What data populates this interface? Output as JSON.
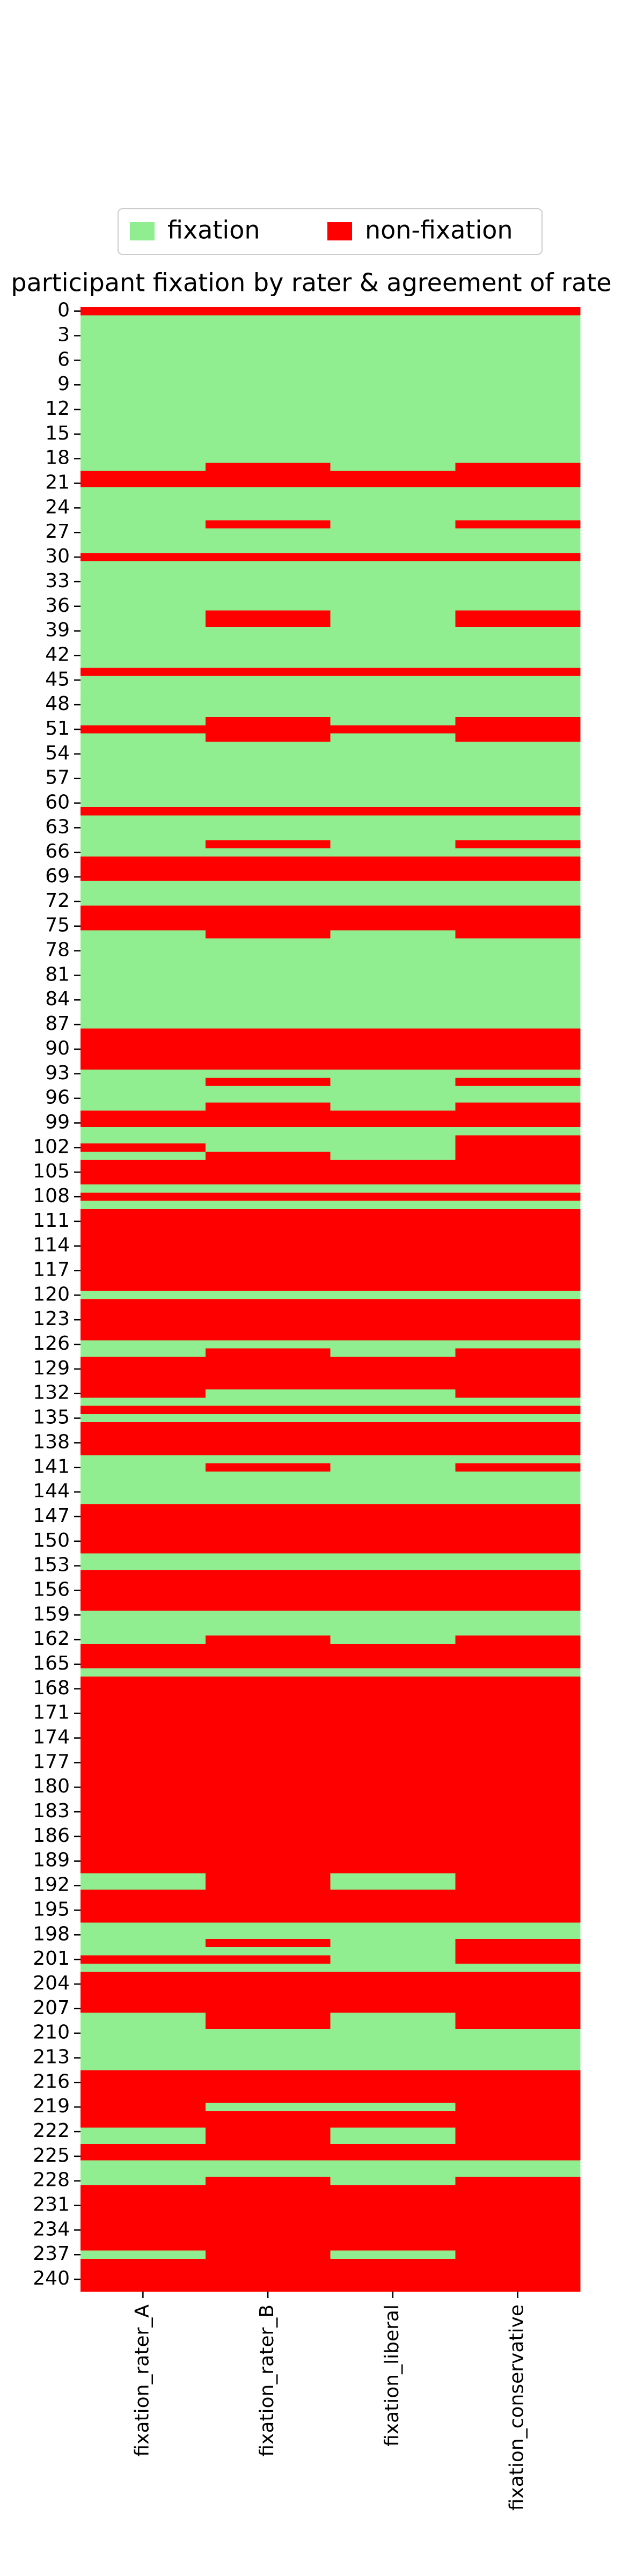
{
  "chart_data": {
    "type": "heatmap",
    "title": "participant fixation by rater & agreement of rate",
    "legend_position": "upper center",
    "legend": [
      {
        "label": "fixation",
        "value": 1,
        "color": "#90ee90"
      },
      {
        "label": "non-fixation",
        "value": 0,
        "color": "#ff0000"
      }
    ],
    "categories": [
      "fixation_rater_A",
      "fixation_rater_B",
      "fixation_liberal",
      "fixation_conservative"
    ],
    "ylim": [
      -0.5,
      241.5
    ],
    "yticks": [
      0,
      3,
      6,
      9,
      12,
      15,
      18,
      21,
      24,
      27,
      30,
      33,
      36,
      39,
      42,
      45,
      48,
      51,
      54,
      57,
      60,
      63,
      66,
      69,
      72,
      75,
      78,
      81,
      84,
      87,
      90,
      93,
      96,
      99,
      102,
      105,
      108,
      111,
      114,
      117,
      120,
      123,
      126,
      129,
      132,
      135,
      138,
      141,
      144,
      147,
      150,
      153,
      156,
      159,
      162,
      165,
      168,
      171,
      174,
      177,
      180,
      183,
      186,
      189,
      192,
      195,
      198,
      201,
      204,
      207,
      210,
      213,
      216,
      219,
      222,
      225,
      228,
      231,
      234,
      237,
      240
    ],
    "values": [
      [
        0,
        0,
        0,
        0
      ],
      [
        1,
        1,
        1,
        1
      ],
      [
        1,
        1,
        1,
        1
      ],
      [
        1,
        1,
        1,
        1
      ],
      [
        1,
        1,
        1,
        1
      ],
      [
        1,
        1,
        1,
        1
      ],
      [
        1,
        1,
        1,
        1
      ],
      [
        1,
        1,
        1,
        1
      ],
      [
        1,
        1,
        1,
        1
      ],
      [
        1,
        1,
        1,
        1
      ],
      [
        1,
        1,
        1,
        1
      ],
      [
        1,
        1,
        1,
        1
      ],
      [
        1,
        1,
        1,
        1
      ],
      [
        1,
        1,
        1,
        1
      ],
      [
        1,
        1,
        1,
        1
      ],
      [
        1,
        1,
        1,
        1
      ],
      [
        1,
        1,
        1,
        1
      ],
      [
        1,
        1,
        1,
        1
      ],
      [
        1,
        1,
        1,
        1
      ],
      [
        1,
        0,
        1,
        0
      ],
      [
        0,
        0,
        0,
        0
      ],
      [
        0,
        0,
        0,
        0
      ],
      [
        1,
        1,
        1,
        1
      ],
      [
        1,
        1,
        1,
        1
      ],
      [
        1,
        1,
        1,
        1
      ],
      [
        1,
        1,
        1,
        1
      ],
      [
        1,
        0,
        1,
        0
      ],
      [
        1,
        1,
        1,
        1
      ],
      [
        1,
        1,
        1,
        1
      ],
      [
        1,
        1,
        1,
        1
      ],
      [
        0,
        0,
        0,
        0
      ],
      [
        1,
        1,
        1,
        1
      ],
      [
        1,
        1,
        1,
        1
      ],
      [
        1,
        1,
        1,
        1
      ],
      [
        1,
        1,
        1,
        1
      ],
      [
        1,
        1,
        1,
        1
      ],
      [
        1,
        1,
        1,
        1
      ],
      [
        1,
        0,
        1,
        0
      ],
      [
        1,
        0,
        1,
        0
      ],
      [
        1,
        1,
        1,
        1
      ],
      [
        1,
        1,
        1,
        1
      ],
      [
        1,
        1,
        1,
        1
      ],
      [
        1,
        1,
        1,
        1
      ],
      [
        1,
        1,
        1,
        1
      ],
      [
        0,
        0,
        0,
        0
      ],
      [
        1,
        1,
        1,
        1
      ],
      [
        1,
        1,
        1,
        1
      ],
      [
        1,
        1,
        1,
        1
      ],
      [
        1,
        1,
        1,
        1
      ],
      [
        1,
        1,
        1,
        1
      ],
      [
        1,
        0,
        1,
        0
      ],
      [
        0,
        0,
        0,
        0
      ],
      [
        1,
        0,
        1,
        0
      ],
      [
        1,
        1,
        1,
        1
      ],
      [
        1,
        1,
        1,
        1
      ],
      [
        1,
        1,
        1,
        1
      ],
      [
        1,
        1,
        1,
        1
      ],
      [
        1,
        1,
        1,
        1
      ],
      [
        1,
        1,
        1,
        1
      ],
      [
        1,
        1,
        1,
        1
      ],
      [
        1,
        1,
        1,
        1
      ],
      [
        0,
        0,
        0,
        0
      ],
      [
        1,
        1,
        1,
        1
      ],
      [
        1,
        1,
        1,
        1
      ],
      [
        1,
        1,
        1,
        1
      ],
      [
        1,
        0,
        1,
        0
      ],
      [
        1,
        1,
        1,
        1
      ],
      [
        0,
        0,
        0,
        0
      ],
      [
        0,
        0,
        0,
        0
      ],
      [
        0,
        0,
        0,
        0
      ],
      [
        1,
        1,
        1,
        1
      ],
      [
        1,
        1,
        1,
        1
      ],
      [
        1,
        1,
        1,
        1
      ],
      [
        0,
        0,
        0,
        0
      ],
      [
        0,
        0,
        0,
        0
      ],
      [
        0,
        0,
        0,
        0
      ],
      [
        1,
        0,
        1,
        0
      ],
      [
        1,
        1,
        1,
        1
      ],
      [
        1,
        1,
        1,
        1
      ],
      [
        1,
        1,
        1,
        1
      ],
      [
        1,
        1,
        1,
        1
      ],
      [
        1,
        1,
        1,
        1
      ],
      [
        1,
        1,
        1,
        1
      ],
      [
        1,
        1,
        1,
        1
      ],
      [
        1,
        1,
        1,
        1
      ],
      [
        1,
        1,
        1,
        1
      ],
      [
        1,
        1,
        1,
        1
      ],
      [
        1,
        1,
        1,
        1
      ],
      [
        0,
        0,
        0,
        0
      ],
      [
        0,
        0,
        0,
        0
      ],
      [
        0,
        0,
        0,
        0
      ],
      [
        0,
        0,
        0,
        0
      ],
      [
        0,
        0,
        0,
        0
      ],
      [
        1,
        1,
        1,
        1
      ],
      [
        1,
        0,
        1,
        0
      ],
      [
        1,
        1,
        1,
        1
      ],
      [
        1,
        1,
        1,
        1
      ],
      [
        1,
        0,
        1,
        0
      ],
      [
        0,
        0,
        0,
        0
      ],
      [
        0,
        0,
        0,
        0
      ],
      [
        1,
        1,
        1,
        1
      ],
      [
        1,
        1,
        1,
        0
      ],
      [
        0,
        1,
        1,
        0
      ],
      [
        1,
        0,
        1,
        0
      ],
      [
        0,
        0,
        0,
        0
      ],
      [
        0,
        0,
        0,
        0
      ],
      [
        0,
        0,
        0,
        0
      ],
      [
        1,
        1,
        1,
        1
      ],
      [
        0,
        0,
        0,
        0
      ],
      [
        1,
        1,
        1,
        1
      ],
      [
        0,
        0,
        0,
        0
      ],
      [
        0,
        0,
        0,
        0
      ],
      [
        0,
        0,
        0,
        0
      ],
      [
        0,
        0,
        0,
        0
      ],
      [
        0,
        0,
        0,
        0
      ],
      [
        0,
        0,
        0,
        0
      ],
      [
        0,
        0,
        0,
        0
      ],
      [
        0,
        0,
        0,
        0
      ],
      [
        0,
        0,
        0,
        0
      ],
      [
        0,
        0,
        0,
        0
      ],
      [
        1,
        1,
        1,
        1
      ],
      [
        0,
        0,
        0,
        0
      ],
      [
        0,
        0,
        0,
        0
      ],
      [
        0,
        0,
        0,
        0
      ],
      [
        0,
        0,
        0,
        0
      ],
      [
        0,
        0,
        0,
        0
      ],
      [
        1,
        1,
        1,
        1
      ],
      [
        1,
        0,
        1,
        0
      ],
      [
        0,
        0,
        0,
        0
      ],
      [
        0,
        0,
        0,
        0
      ],
      [
        0,
        0,
        0,
        0
      ],
      [
        0,
        0,
        0,
        0
      ],
      [
        0,
        1,
        1,
        0
      ],
      [
        1,
        1,
        1,
        1
      ],
      [
        0,
        0,
        0,
        0
      ],
      [
        1,
        1,
        1,
        1
      ],
      [
        0,
        0,
        0,
        0
      ],
      [
        0,
        0,
        0,
        0
      ],
      [
        0,
        0,
        0,
        0
      ],
      [
        0,
        0,
        0,
        0
      ],
      [
        1,
        1,
        1,
        1
      ],
      [
        1,
        0,
        1,
        0
      ],
      [
        1,
        1,
        1,
        1
      ],
      [
        1,
        1,
        1,
        1
      ],
      [
        1,
        1,
        1,
        1
      ],
      [
        1,
        1,
        1,
        1
      ],
      [
        0,
        0,
        0,
        0
      ],
      [
        0,
        0,
        0,
        0
      ],
      [
        0,
        0,
        0,
        0
      ],
      [
        0,
        0,
        0,
        0
      ],
      [
        0,
        0,
        0,
        0
      ],
      [
        0,
        0,
        0,
        0
      ],
      [
        1,
        1,
        1,
        1
      ],
      [
        1,
        1,
        1,
        1
      ],
      [
        0,
        0,
        0,
        0
      ],
      [
        0,
        0,
        0,
        0
      ],
      [
        0,
        0,
        0,
        0
      ],
      [
        0,
        0,
        0,
        0
      ],
      [
        0,
        0,
        0,
        0
      ],
      [
        1,
        1,
        1,
        1
      ],
      [
        1,
        1,
        1,
        1
      ],
      [
        1,
        1,
        1,
        1
      ],
      [
        1,
        0,
        1,
        0
      ],
      [
        0,
        0,
        0,
        0
      ],
      [
        0,
        0,
        0,
        0
      ],
      [
        0,
        0,
        0,
        0
      ],
      [
        1,
        1,
        1,
        1
      ],
      [
        0,
        0,
        0,
        0
      ],
      [
        0,
        0,
        0,
        0
      ],
      [
        0,
        0,
        0,
        0
      ],
      [
        0,
        0,
        0,
        0
      ],
      [
        0,
        0,
        0,
        0
      ],
      [
        0,
        0,
        0,
        0
      ],
      [
        0,
        0,
        0,
        0
      ],
      [
        0,
        0,
        0,
        0
      ],
      [
        0,
        0,
        0,
        0
      ],
      [
        0,
        0,
        0,
        0
      ],
      [
        0,
        0,
        0,
        0
      ],
      [
        0,
        0,
        0,
        0
      ],
      [
        0,
        0,
        0,
        0
      ],
      [
        0,
        0,
        0,
        0
      ],
      [
        0,
        0,
        0,
        0
      ],
      [
        0,
        0,
        0,
        0
      ],
      [
        0,
        0,
        0,
        0
      ],
      [
        0,
        0,
        0,
        0
      ],
      [
        0,
        0,
        0,
        0
      ],
      [
        0,
        0,
        0,
        0
      ],
      [
        0,
        0,
        0,
        0
      ],
      [
        0,
        0,
        0,
        0
      ],
      [
        0,
        0,
        0,
        0
      ],
      [
        0,
        0,
        0,
        0
      ],
      [
        1,
        0,
        1,
        0
      ],
      [
        1,
        0,
        1,
        0
      ],
      [
        0,
        0,
        0,
        0
      ],
      [
        0,
        0,
        0,
        0
      ],
      [
        0,
        0,
        0,
        0
      ],
      [
        0,
        0,
        0,
        0
      ],
      [
        1,
        1,
        1,
        1
      ],
      [
        1,
        1,
        1,
        1
      ],
      [
        1,
        0,
        1,
        0
      ],
      [
        1,
        1,
        1,
        0
      ],
      [
        0,
        0,
        1,
        0
      ],
      [
        1,
        1,
        1,
        1
      ],
      [
        0,
        0,
        0,
        0
      ],
      [
        0,
        0,
        0,
        0
      ],
      [
        0,
        0,
        0,
        0
      ],
      [
        0,
        0,
        0,
        0
      ],
      [
        0,
        0,
        0,
        0
      ],
      [
        1,
        0,
        1,
        0
      ],
      [
        1,
        0,
        1,
        0
      ],
      [
        1,
        1,
        1,
        1
      ],
      [
        1,
        1,
        1,
        1
      ],
      [
        1,
        1,
        1,
        1
      ],
      [
        1,
        1,
        1,
        1
      ],
      [
        1,
        1,
        1,
        1
      ],
      [
        0,
        0,
        0,
        0
      ],
      [
        0,
        0,
        0,
        0
      ],
      [
        0,
        0,
        0,
        0
      ],
      [
        0,
        0,
        0,
        0
      ],
      [
        0,
        1,
        1,
        0
      ],
      [
        0,
        0,
        0,
        0
      ],
      [
        0,
        0,
        0,
        0
      ],
      [
        1,
        0,
        1,
        0
      ],
      [
        1,
        0,
        1,
        0
      ],
      [
        0,
        0,
        0,
        0
      ],
      [
        0,
        0,
        0,
        0
      ],
      [
        1,
        1,
        1,
        1
      ],
      [
        1,
        1,
        1,
        1
      ],
      [
        1,
        0,
        1,
        0
      ],
      [
        0,
        0,
        0,
        0
      ],
      [
        0,
        0,
        0,
        0
      ],
      [
        0,
        0,
        0,
        0
      ],
      [
        0,
        0,
        0,
        0
      ],
      [
        0,
        0,
        0,
        0
      ],
      [
        0,
        0,
        0,
        0
      ],
      [
        0,
        0,
        0,
        0
      ],
      [
        0,
        0,
        0,
        0
      ],
      [
        1,
        0,
        1,
        0
      ],
      [
        0,
        0,
        0,
        0
      ],
      [
        0,
        0,
        0,
        0
      ],
      [
        0,
        0,
        0,
        0
      ],
      [
        0,
        0,
        0,
        0
      ]
    ]
  }
}
